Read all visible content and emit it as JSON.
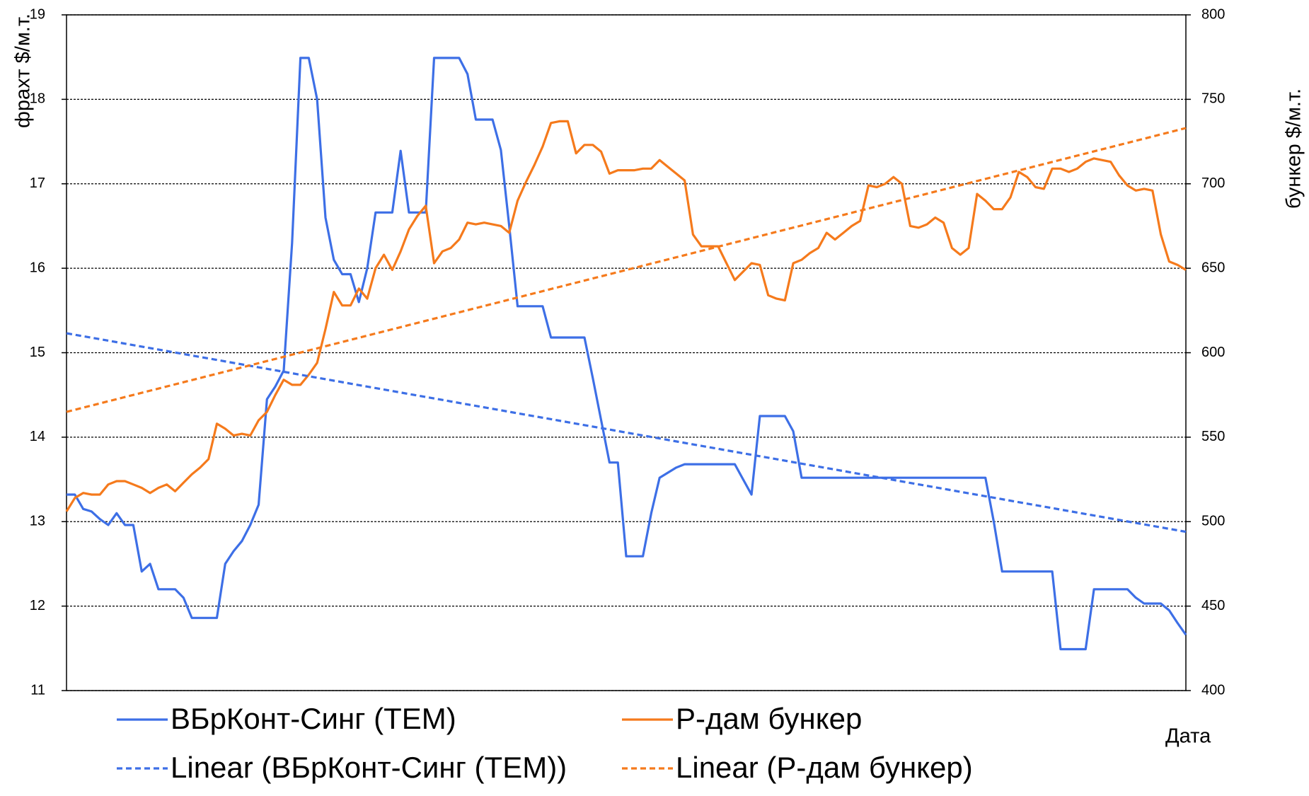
{
  "chart_data": {
    "type": "line",
    "ylabel": "фрахт $/м.т.",
    "y2label": "бункер $/м.т.",
    "xlabel": "Дата",
    "ylim": [
      11,
      19
    ],
    "yticks": [
      11,
      12,
      13,
      14,
      15,
      16,
      17,
      18,
      19
    ],
    "y2lim": [
      400,
      800
    ],
    "y2ticks": [
      400,
      450,
      500,
      550,
      600,
      650,
      700,
      750,
      800
    ],
    "grid": true,
    "series": [
      {
        "name": "ВБрКонт-Синг (TEM)",
        "color": "#3d6fe6",
        "axis": "y",
        "line_style": "solid",
        "values": [
          13.32,
          13.32,
          13.15,
          13.12,
          13.03,
          12.96,
          13.1,
          12.96,
          12.96,
          12.41,
          12.5,
          12.2,
          12.2,
          12.2,
          12.1,
          11.86,
          11.86,
          11.86,
          11.86,
          12.5,
          12.65,
          12.77,
          12.96,
          13.2,
          14.45,
          14.6,
          14.79,
          16.3,
          18.49,
          18.49,
          18.0,
          16.6,
          16.1,
          15.93,
          15.93,
          15.6,
          16.0,
          16.66,
          16.66,
          16.66,
          17.39,
          16.66,
          16.66,
          16.66,
          18.49,
          18.49,
          18.49,
          18.49,
          18.3,
          17.76,
          17.76,
          17.76,
          17.4,
          16.5,
          15.55,
          15.55,
          15.55,
          15.55,
          15.18,
          15.18,
          15.18,
          15.18,
          15.18,
          14.7,
          14.2,
          13.7,
          13.7,
          12.59,
          12.59,
          12.59,
          13.1,
          13.52,
          13.58,
          13.64,
          13.68,
          13.68,
          13.68,
          13.68,
          13.68,
          13.68,
          13.68,
          13.5,
          13.32,
          14.25,
          14.25,
          14.25,
          14.25,
          14.07,
          13.52,
          13.52,
          13.52,
          13.52,
          13.52,
          13.52,
          13.52,
          13.52,
          13.52,
          13.52,
          13.52,
          13.52,
          13.52,
          13.52,
          13.52,
          13.52,
          13.52,
          13.52,
          13.52,
          13.52,
          13.52,
          13.52,
          13.52,
          13.0,
          12.41,
          12.41,
          12.41,
          12.41,
          12.41,
          12.41,
          12.41,
          11.49,
          11.49,
          11.49,
          11.49,
          12.2,
          12.2,
          12.2,
          12.2,
          12.2,
          12.1,
          12.03,
          12.03,
          12.03,
          11.95,
          11.8,
          11.66
        ]
      },
      {
        "name": "Р-дам бункер",
        "color": "#f57a1c",
        "axis": "y2",
        "line_style": "solid",
        "values": [
          506,
          514,
          517,
          516,
          516,
          522,
          524,
          524,
          522,
          520,
          517,
          520,
          522,
          518,
          523,
          528,
          532,
          537,
          558,
          555,
          551,
          552,
          551,
          560,
          565,
          575,
          584,
          581,
          581,
          587,
          594,
          614,
          636,
          628,
          628,
          638,
          632,
          650,
          658,
          649,
          660,
          673,
          681,
          687,
          653,
          660,
          662,
          667,
          677,
          676,
          677,
          676,
          675,
          671,
          690,
          701,
          711,
          722,
          736,
          737,
          737,
          718,
          723,
          723,
          719,
          706,
          708,
          708,
          708,
          709,
          709,
          714,
          710,
          706,
          702,
          670,
          663,
          663,
          663,
          653,
          643,
          648,
          653,
          652,
          634,
          632,
          631,
          653,
          655,
          659,
          662,
          671,
          667,
          671,
          675,
          678,
          699,
          698,
          700,
          704,
          700,
          675,
          674,
          676,
          680,
          677,
          662,
          658,
          662,
          694,
          690,
          685,
          685,
          692,
          707,
          704,
          698,
          697,
          709,
          709,
          707,
          709,
          713,
          715,
          714,
          713,
          705,
          699,
          696,
          697,
          696,
          670,
          654,
          652,
          649
        ]
      },
      {
        "name": "Linear (ВБрКонт-Синг (TEM))",
        "color": "#3d6fe6",
        "axis": "y",
        "line_style": "dashed",
        "values": [
          15.23,
          12.88
        ]
      },
      {
        "name": "Linear (Р-дам бункер)",
        "color": "#f57a1c",
        "axis": "y2",
        "line_style": "dashed",
        "values": [
          565,
          733
        ]
      }
    ]
  }
}
